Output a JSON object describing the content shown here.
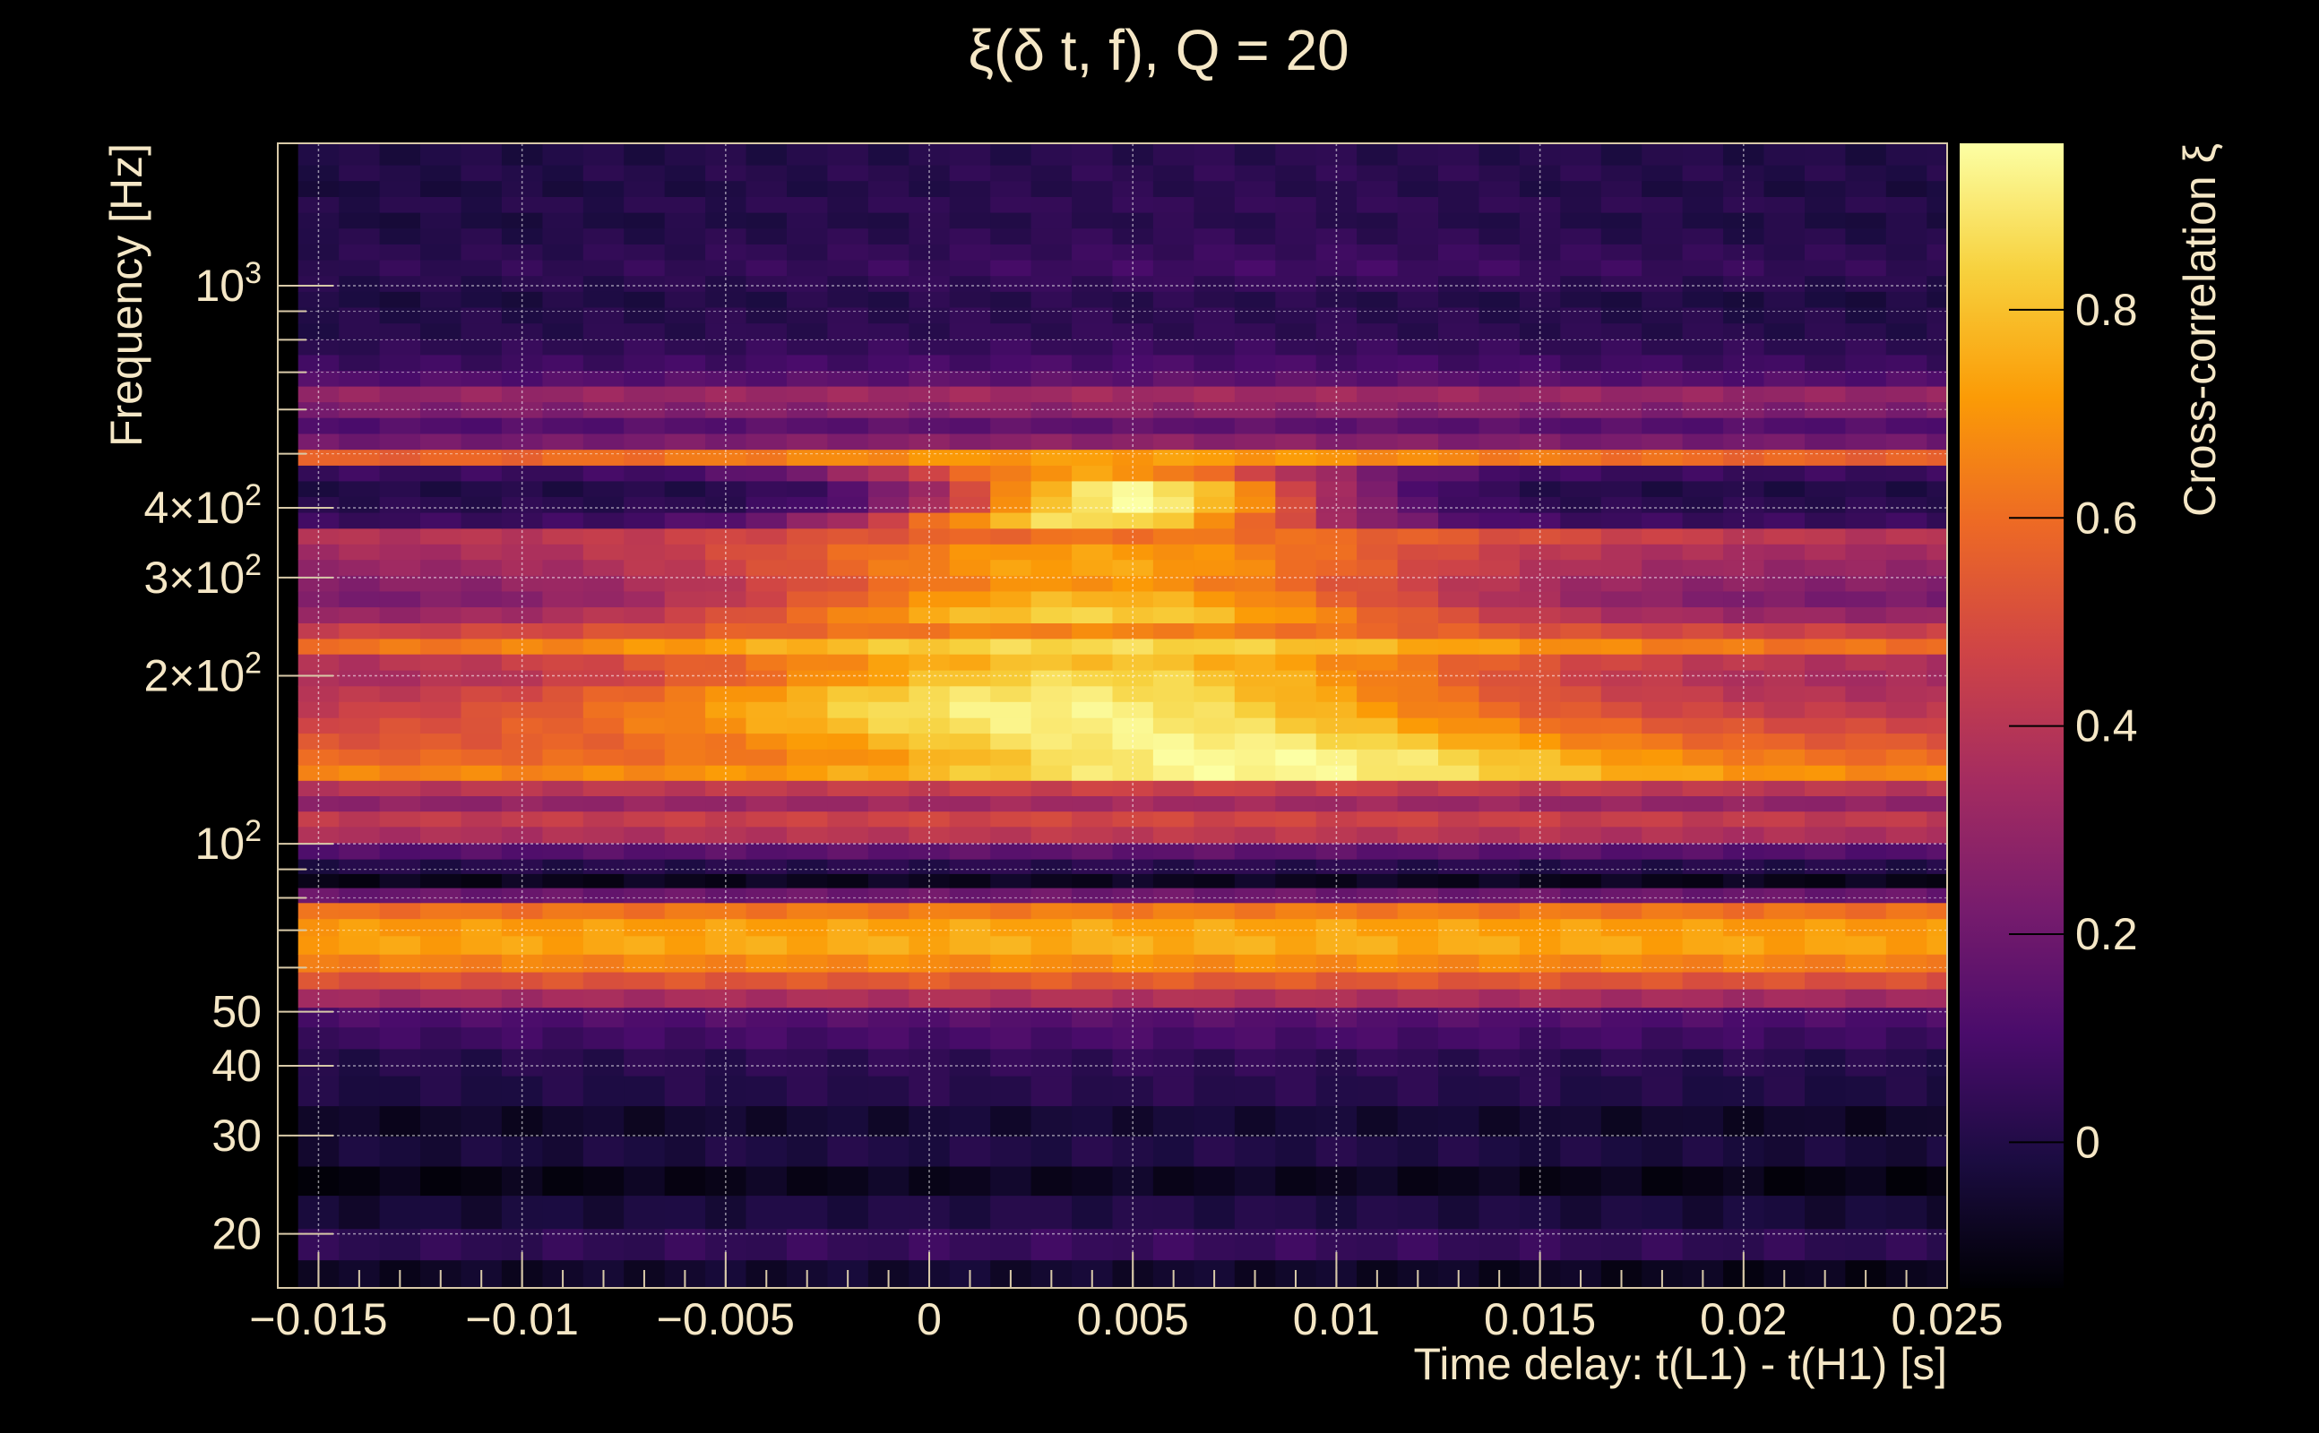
{
  "chart_data": {
    "type": "heatmap",
    "title": "ξ(δ t, f), Q = 20",
    "xlabel": "Time delay: t(L1) - t(H1) [s]",
    "ylabel": "Frequency [Hz]",
    "colorbar_label": "Cross-correlation ξ",
    "xlim": [
      -0.016,
      0.025
    ],
    "ylim": [
      16,
      1800
    ],
    "y_scale": "log",
    "grid": true,
    "x_ticks": [
      {
        "value": -0.015,
        "label": "−0.015"
      },
      {
        "value": -0.01,
        "label": "−0.01"
      },
      {
        "value": -0.005,
        "label": "−0.005"
      },
      {
        "value": 0,
        "label": "0"
      },
      {
        "value": 0.005,
        "label": "0.005"
      },
      {
        "value": 0.01,
        "label": "0.01"
      },
      {
        "value": 0.015,
        "label": "0.015"
      },
      {
        "value": 0.02,
        "label": "0.02"
      },
      {
        "value": 0.025,
        "label": "0.025"
      }
    ],
    "y_ticks": [
      {
        "value": 20,
        "label": "20"
      },
      {
        "value": 30,
        "label": "30"
      },
      {
        "value": 40,
        "label": "40"
      },
      {
        "value": 50,
        "label": "50"
      },
      {
        "value": 100,
        "label": "10",
        "sup": "2"
      },
      {
        "value": 200,
        "label": "2×10",
        "sup": "2"
      },
      {
        "value": 300,
        "label": "3×10",
        "sup": "2"
      },
      {
        "value": 400,
        "label": "4×10",
        "sup": "2"
      },
      {
        "value": 1000,
        "label": "10",
        "sup": "3"
      }
    ],
    "colorbar_range": [
      -0.14,
      0.96
    ],
    "colorbar_ticks": [
      {
        "value": 0,
        "label": "0"
      },
      {
        "value": 0.2,
        "label": "0.2"
      },
      {
        "value": 0.4,
        "label": "0.4"
      },
      {
        "value": 0.6,
        "label": "0.6"
      },
      {
        "value": 0.8,
        "label": "0.8"
      }
    ],
    "colors": {
      "background": "#000000",
      "text": "#f5e7c6",
      "grid": "#ffffff",
      "colormap": [
        "#000004",
        "#1b0c41",
        "#4a0c6b",
        "#781c6d",
        "#a52c60",
        "#cf4446",
        "#ed6925",
        "#fb9b06",
        "#f7d13d",
        "#fcffa4"
      ]
    },
    "x_bins": [
      -0.015,
      -0.014,
      -0.013,
      -0.012,
      -0.011,
      -0.01,
      -0.009,
      -0.008,
      -0.007,
      -0.006,
      -0.005,
      -0.004,
      -0.003,
      -0.002,
      -0.001,
      0,
      0.001,
      0.002,
      0.003,
      0.004,
      0.005,
      0.006,
      0.007,
      0.008,
      0.009,
      0.01,
      0.011,
      0.012,
      0.013,
      0.014,
      0.015,
      0.016,
      0.017,
      0.018,
      0.019,
      0.02,
      0.021,
      0.022,
      0.023,
      0.024,
      0.025
    ],
    "y_bands": [
      {
        "f": 17,
        "xi": -0.1,
        "xi_peak": -0.05,
        "t_peak": 0.0,
        "width": 0.015
      },
      {
        "f": 19,
        "xi": 0.02,
        "xi_peak": 0.06,
        "t_peak": 0.005,
        "width": 0.015
      },
      {
        "f": 22,
        "xi": -0.05,
        "xi_peak": 0.0,
        "t_peak": 0.005,
        "width": 0.015
      },
      {
        "f": 25,
        "xi": -0.12,
        "xi_peak": -0.08,
        "t_peak": 0.005,
        "width": 0.015
      },
      {
        "f": 28,
        "xi": -0.04,
        "xi_peak": 0.0,
        "t_peak": 0.005,
        "width": 0.015
      },
      {
        "f": 32,
        "xi": -0.08,
        "xi_peak": -0.04,
        "t_peak": 0.005,
        "width": 0.015
      },
      {
        "f": 36,
        "xi": -0.02,
        "xi_peak": 0.02,
        "t_peak": 0.005,
        "width": 0.015
      },
      {
        "f": 41,
        "xi": 0.0,
        "xi_peak": 0.04,
        "t_peak": 0.005,
        "width": 0.015
      },
      {
        "f": 45,
        "xi": 0.06,
        "xi_peak": 0.1,
        "t_peak": 0.005,
        "width": 0.015
      },
      {
        "f": 49,
        "xi": 0.1,
        "xi_peak": 0.14,
        "t_peak": 0.005,
        "width": 0.015
      },
      {
        "f": 53,
        "xi": 0.32,
        "xi_peak": 0.38,
        "t_peak": 0.005,
        "width": 0.015
      },
      {
        "f": 57,
        "xi": 0.5,
        "xi_peak": 0.55,
        "t_peak": 0.005,
        "width": 0.015
      },
      {
        "f": 61,
        "xi": 0.64,
        "xi_peak": 0.68,
        "t_peak": 0.005,
        "width": 0.015
      },
      {
        "f": 66,
        "xi": 0.72,
        "xi_peak": 0.76,
        "t_peak": 0.005,
        "width": 0.015
      },
      {
        "f": 71,
        "xi": 0.7,
        "xi_peak": 0.74,
        "t_peak": 0.005,
        "width": 0.015
      },
      {
        "f": 76,
        "xi": 0.6,
        "xi_peak": 0.64,
        "t_peak": 0.005,
        "width": 0.015
      },
      {
        "f": 81,
        "xi": 0.18,
        "xi_peak": 0.2,
        "t_peak": 0.005,
        "width": 0.015
      },
      {
        "f": 86,
        "xi": -0.1,
        "xi_peak": -0.08,
        "t_peak": 0.005,
        "width": 0.015
      },
      {
        "f": 91,
        "xi": 0.0,
        "xi_peak": 0.02,
        "t_peak": 0.005,
        "width": 0.015
      },
      {
        "f": 97,
        "xi": 0.12,
        "xi_peak": 0.16,
        "t_peak": 0.005,
        "width": 0.015
      },
      {
        "f": 104,
        "xi": 0.36,
        "xi_peak": 0.42,
        "t_peak": 0.005,
        "width": 0.012
      },
      {
        "f": 111,
        "xi": 0.42,
        "xi_peak": 0.48,
        "t_peak": 0.005,
        "width": 0.012
      },
      {
        "f": 118,
        "xi": 0.28,
        "xi_peak": 0.34,
        "t_peak": 0.005,
        "width": 0.012
      },
      {
        "f": 126,
        "xi": 0.4,
        "xi_peak": 0.46,
        "t_peak": 0.006,
        "width": 0.012
      },
      {
        "f": 134,
        "xi": 0.66,
        "xi_peak": 0.94,
        "t_peak": 0.008,
        "width": 0.009
      },
      {
        "f": 143,
        "xi": 0.58,
        "xi_peak": 0.95,
        "t_peak": 0.008,
        "width": 0.009
      },
      {
        "f": 153,
        "xi": 0.52,
        "xi_peak": 0.93,
        "t_peak": 0.006,
        "width": 0.01
      },
      {
        "f": 163,
        "xi": 0.46,
        "xi_peak": 0.92,
        "t_peak": 0.004,
        "width": 0.011
      },
      {
        "f": 174,
        "xi": 0.4,
        "xi_peak": 0.93,
        "t_peak": 0.003,
        "width": 0.011
      },
      {
        "f": 186,
        "xi": 0.36,
        "xi_peak": 0.9,
        "t_peak": 0.003,
        "width": 0.011
      },
      {
        "f": 198,
        "xi": 0.34,
        "xi_peak": 0.86,
        "t_peak": 0.004,
        "width": 0.01
      },
      {
        "f": 212,
        "xi": 0.36,
        "xi_peak": 0.8,
        "t_peak": 0.004,
        "width": 0.011
      },
      {
        "f": 226,
        "xi": 0.6,
        "xi_peak": 0.86,
        "t_peak": 0.004,
        "width": 0.011
      },
      {
        "f": 241,
        "xi": 0.44,
        "xi_peak": 0.66,
        "t_peak": 0.004,
        "width": 0.011
      },
      {
        "f": 257,
        "xi": 0.3,
        "xi_peak": 0.84,
        "t_peak": 0.004,
        "width": 0.009
      },
      {
        "f": 275,
        "xi": 0.22,
        "xi_peak": 0.78,
        "t_peak": 0.004,
        "width": 0.009
      },
      {
        "f": 293,
        "xi": 0.26,
        "xi_peak": 0.7,
        "t_peak": 0.004,
        "width": 0.009
      },
      {
        "f": 313,
        "xi": 0.3,
        "xi_peak": 0.74,
        "t_peak": 0.004,
        "width": 0.009
      },
      {
        "f": 334,
        "xi": 0.34,
        "xi_peak": 0.72,
        "t_peak": 0.004,
        "width": 0.009
      },
      {
        "f": 356,
        "xi": 0.38,
        "xi_peak": 0.62,
        "t_peak": 0.006,
        "width": 0.011
      },
      {
        "f": 380,
        "xi": 0.06,
        "xi_peak": 0.88,
        "t_peak": 0.004,
        "width": 0.006
      },
      {
        "f": 406,
        "xi": 0.02,
        "xi_peak": 0.94,
        "t_peak": 0.005,
        "width": 0.005
      },
      {
        "f": 433,
        "xi": 0.0,
        "xi_peak": 0.93,
        "t_peak": 0.005,
        "width": 0.005
      },
      {
        "f": 462,
        "xi": 0.06,
        "xi_peak": 0.72,
        "t_peak": 0.004,
        "width": 0.006
      },
      {
        "f": 493,
        "xi": 0.55,
        "xi_peak": 0.72,
        "t_peak": 0.005,
        "width": 0.012
      },
      {
        "f": 526,
        "xi": 0.2,
        "xi_peak": 0.28,
        "t_peak": 0.005,
        "width": 0.012
      },
      {
        "f": 562,
        "xi": 0.12,
        "xi_peak": 0.16,
        "t_peak": 0.005,
        "width": 0.012
      },
      {
        "f": 600,
        "xi": 0.24,
        "xi_peak": 0.28,
        "t_peak": 0.005,
        "width": 0.012
      },
      {
        "f": 640,
        "xi": 0.3,
        "xi_peak": 0.34,
        "t_peak": 0.005,
        "width": 0.012
      },
      {
        "f": 683,
        "xi": 0.12,
        "xi_peak": 0.16,
        "t_peak": 0.005,
        "width": 0.012
      },
      {
        "f": 729,
        "xi": 0.06,
        "xi_peak": 0.1,
        "t_peak": 0.005,
        "width": 0.012
      },
      {
        "f": 778,
        "xi": 0.03,
        "xi_peak": 0.06,
        "t_peak": 0.005,
        "width": 0.012
      },
      {
        "f": 830,
        "xi": 0.01,
        "xi_peak": 0.04,
        "t_peak": 0.005,
        "width": 0.012
      },
      {
        "f": 886,
        "xi": 0.0,
        "xi_peak": 0.03,
        "t_peak": 0.005,
        "width": 0.012
      },
      {
        "f": 946,
        "xi": -0.02,
        "xi_peak": 0.02,
        "t_peak": 0.005,
        "width": 0.012
      },
      {
        "f": 1010,
        "xi": 0.01,
        "xi_peak": 0.05,
        "t_peak": 0.007,
        "width": 0.012
      },
      {
        "f": 1078,
        "xi": 0.03,
        "xi_peak": 0.08,
        "t_peak": 0.008,
        "width": 0.012
      },
      {
        "f": 1150,
        "xi": 0.02,
        "xi_peak": 0.06,
        "t_peak": 0.008,
        "width": 0.012
      },
      {
        "f": 1228,
        "xi": 0.0,
        "xi_peak": 0.04,
        "t_peak": 0.007,
        "width": 0.012
      },
      {
        "f": 1311,
        "xi": -0.02,
        "xi_peak": 0.02,
        "t_peak": 0.007,
        "width": 0.012
      },
      {
        "f": 1399,
        "xi": 0.01,
        "xi_peak": 0.04,
        "t_peak": 0.007,
        "width": 0.012
      },
      {
        "f": 1494,
        "xi": -0.02,
        "xi_peak": 0.02,
        "t_peak": 0.007,
        "width": 0.012
      },
      {
        "f": 1594,
        "xi": 0.0,
        "xi_peak": 0.03,
        "t_peak": 0.007,
        "width": 0.012
      },
      {
        "f": 1702,
        "xi": -0.01,
        "xi_peak": 0.02,
        "t_peak": 0.007,
        "width": 0.012
      }
    ]
  }
}
